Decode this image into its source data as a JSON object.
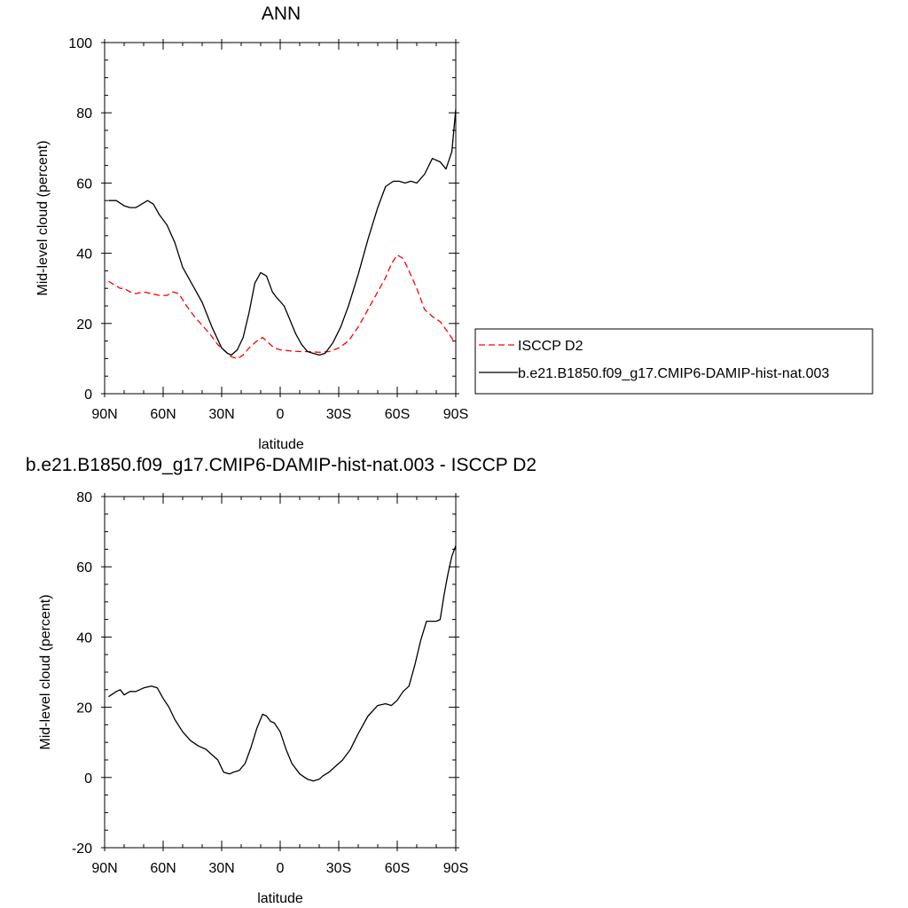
{
  "chart_data": [
    {
      "type": "line",
      "title": "ANN",
      "xlabel": "latitude",
      "ylabel": "Mid-level cloud (percent)",
      "xlim": [
        90,
        -90
      ],
      "ylim": [
        0,
        100
      ],
      "x_tick_values": [
        90,
        60,
        30,
        0,
        -30,
        -60,
        -90
      ],
      "x_tick_labels": [
        "90N",
        "60N",
        "30N",
        "0",
        "30S",
        "60S",
        "90S"
      ],
      "y_ticks": [
        0,
        20,
        40,
        60,
        80,
        100
      ],
      "grid": false,
      "legend": "right",
      "series": [
        {
          "name": "ISCCP D2",
          "color": "#ff0000",
          "dash": "dashed",
          "x": [
            88,
            85,
            82,
            80,
            77,
            74,
            70,
            66,
            62,
            58,
            55,
            52,
            48,
            44,
            40,
            36,
            32,
            28,
            25,
            22,
            19,
            16,
            12,
            9,
            6,
            3,
            0,
            -5,
            -10,
            -15,
            -20,
            -25,
            -30,
            -35,
            -40,
            -45,
            -50,
            -54,
            -57,
            -60,
            -63,
            -66,
            -70,
            -74,
            -78,
            -82,
            -86,
            -89
          ],
          "y": [
            32,
            31,
            30,
            30,
            29,
            28.5,
            29,
            28.5,
            28,
            28,
            29,
            28.5,
            25,
            22,
            19.5,
            17,
            14,
            12,
            10.5,
            10,
            11,
            13,
            15,
            16,
            14.5,
            13,
            12.5,
            12.2,
            12,
            12,
            11.8,
            12,
            13,
            15,
            19,
            24,
            29,
            33,
            37,
            39.5,
            38.5,
            35,
            30,
            24,
            22,
            20.5,
            17.5,
            15
          ]
        },
        {
          "name": "b.e21.B1850.f09_g17.CMIP6-DAMIP-hist-nat.003",
          "color": "#000000",
          "dash": "solid",
          "x": [
            88,
            84,
            80,
            77,
            74,
            71,
            68,
            65,
            62,
            58,
            54,
            50,
            45,
            40,
            35,
            30,
            27,
            25,
            22,
            19,
            16,
            13,
            10,
            7,
            4,
            2,
            -2,
            -5,
            -8,
            -11,
            -14,
            -17,
            -20,
            -23,
            -27,
            -31,
            -35,
            -40,
            -45,
            -50,
            -54,
            -58,
            -61,
            -64,
            -67,
            -70,
            -74,
            -78,
            -82,
            -85,
            -88,
            -90
          ],
          "y": [
            55,
            55,
            53.5,
            53,
            53,
            54,
            55,
            54,
            51,
            48,
            43,
            36,
            31,
            26,
            19,
            13,
            11.5,
            11,
            12.5,
            16,
            23,
            31.5,
            34.5,
            33.5,
            29,
            27.5,
            25,
            21,
            17,
            14,
            12,
            11.5,
            11,
            11.5,
            14.5,
            19,
            25,
            34,
            44,
            53,
            59,
            60.5,
            60.5,
            60,
            60.5,
            60,
            62.5,
            67,
            66,
            64,
            69,
            81
          ]
        }
      ]
    },
    {
      "type": "line",
      "title": "b.e21.B1850.f09_g17.CMIP6-DAMIP-hist-nat.003 - ISCCP D2",
      "xlabel": "latitude",
      "ylabel": "Mid-level cloud (percent)",
      "xlim": [
        90,
        -90
      ],
      "ylim": [
        -20,
        80
      ],
      "x_tick_values": [
        90,
        60,
        30,
        0,
        -30,
        -60,
        -90
      ],
      "x_tick_labels": [
        "90N",
        "60N",
        "30N",
        "0",
        "30S",
        "60S",
        "90S"
      ],
      "y_ticks": [
        -20,
        0,
        20,
        40,
        60,
        80
      ],
      "grid": false,
      "series": [
        {
          "color": "#000000",
          "dash": "solid",
          "x": [
            88,
            84,
            82,
            80,
            77,
            74,
            70,
            66,
            63,
            60,
            57,
            54,
            50,
            46,
            42,
            38,
            35,
            32,
            29,
            26,
            24,
            21,
            18,
            15,
            12,
            9,
            7,
            5,
            3,
            0,
            -3,
            -6,
            -10,
            -14,
            -17,
            -20,
            -22,
            -25,
            -28,
            -32,
            -36,
            -40,
            -45,
            -50,
            -54,
            -57,
            -60,
            -63,
            -66,
            -69,
            -72,
            -75,
            -78,
            -80,
            -82,
            -84,
            -86,
            -88,
            -90
          ],
          "y": [
            23,
            24.5,
            25,
            23.5,
            24.5,
            24.5,
            25.5,
            26,
            25.5,
            22.5,
            20,
            16.5,
            13,
            10.5,
            9,
            8,
            6.5,
            5,
            1.5,
            1,
            1.5,
            2,
            4,
            8.5,
            14,
            18,
            17.5,
            16,
            15.5,
            13,
            8,
            4,
            1,
            -0.5,
            -1,
            -0.5,
            0.5,
            1.5,
            3,
            5,
            8,
            12.5,
            17.5,
            20.5,
            21,
            20.5,
            22,
            24.5,
            26,
            32,
            39,
            44.5,
            44.5,
            44.5,
            45,
            52,
            58,
            63,
            66
          ]
        }
      ]
    }
  ]
}
